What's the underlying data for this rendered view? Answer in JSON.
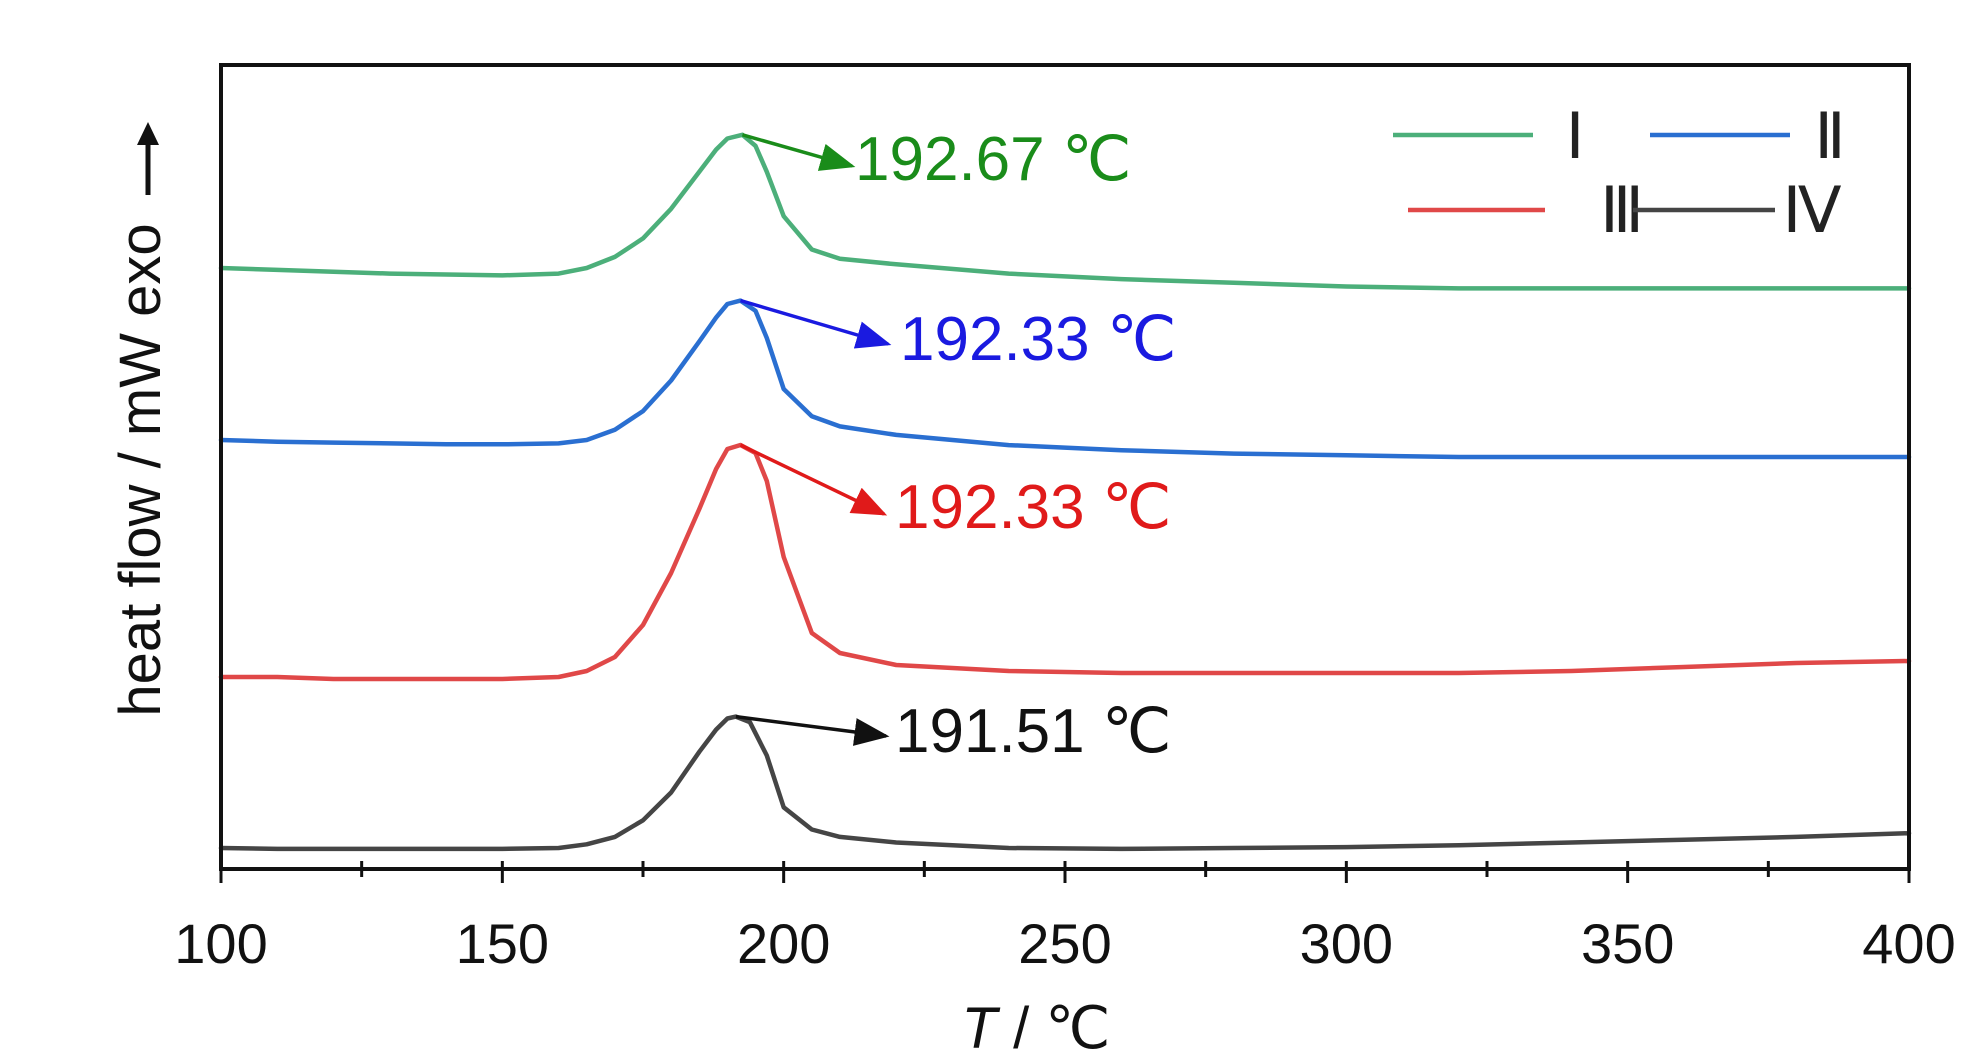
{
  "chart_data": {
    "type": "line",
    "xlabel_italic": "T",
    "xlabel_rest": " / ℃",
    "ylabel": "heat flow / mW  exo",
    "xlim": [
      100,
      400
    ],
    "xticks": [
      "100",
      "150",
      "200",
      "250",
      "300",
      "350",
      "400"
    ],
    "yticks_labeled": false,
    "grid": false,
    "legend_position": "top-right",
    "series": [
      {
        "name": "Ⅰ",
        "color": "#4caf7a",
        "x": [
          100,
          110,
          120,
          130,
          140,
          150,
          160,
          165,
          170,
          175,
          180,
          185,
          188,
          190,
          192.67,
          195,
          197,
          200,
          205,
          210,
          220,
          240,
          260,
          280,
          300,
          320,
          340,
          360,
          380,
          400
        ],
        "y": [
          0.0,
          -0.01,
          -0.02,
          -0.03,
          -0.035,
          -0.04,
          -0.03,
          0.0,
          0.06,
          0.16,
          0.32,
          0.52,
          0.64,
          0.7,
          0.72,
          0.66,
          0.52,
          0.28,
          0.1,
          0.05,
          0.02,
          -0.03,
          -0.06,
          -0.08,
          -0.1,
          -0.11,
          -0.11,
          -0.11,
          -0.11,
          -0.11
        ]
      },
      {
        "name": "Ⅱ",
        "color": "#2a6fd1",
        "x": [
          100,
          110,
          120,
          130,
          140,
          150,
          160,
          165,
          170,
          175,
          180,
          185,
          188,
          190,
          192.33,
          195,
          197,
          200,
          205,
          210,
          220,
          240,
          260,
          280,
          300,
          320,
          340,
          360,
          380,
          400
        ],
        "y": [
          0.0,
          -0.01,
          -0.015,
          -0.02,
          -0.025,
          -0.025,
          -0.02,
          0.0,
          0.06,
          0.17,
          0.35,
          0.58,
          0.72,
          0.8,
          0.82,
          0.76,
          0.6,
          0.3,
          0.14,
          0.08,
          0.03,
          -0.03,
          -0.06,
          -0.08,
          -0.09,
          -0.1,
          -0.1,
          -0.1,
          -0.1,
          -0.1
        ]
      },
      {
        "name": "Ⅲ",
        "color": "#e04848",
        "x": [
          100,
          110,
          120,
          130,
          140,
          150,
          160,
          165,
          170,
          175,
          180,
          185,
          188,
          190,
          192.33,
          195,
          197,
          200,
          205,
          210,
          220,
          240,
          260,
          280,
          300,
          320,
          340,
          360,
          380,
          400
        ],
        "y": [
          0.0,
          0.0,
          -0.01,
          -0.01,
          -0.01,
          -0.01,
          0.0,
          0.03,
          0.1,
          0.26,
          0.52,
          0.84,
          1.04,
          1.14,
          1.16,
          1.12,
          0.98,
          0.6,
          0.22,
          0.12,
          0.06,
          0.03,
          0.02,
          0.02,
          0.02,
          0.02,
          0.03,
          0.05,
          0.07,
          0.08
        ]
      },
      {
        "name": "Ⅳ",
        "color": "#454545",
        "x": [
          100,
          110,
          120,
          130,
          140,
          150,
          160,
          165,
          170,
          175,
          180,
          185,
          188,
          190,
          191.51,
          194,
          197,
          200,
          205,
          210,
          220,
          240,
          260,
          280,
          300,
          320,
          340,
          360,
          380,
          400
        ],
        "y": [
          0.0,
          -0.005,
          -0.005,
          -0.005,
          -0.005,
          -0.005,
          0.0,
          0.02,
          0.06,
          0.15,
          0.3,
          0.52,
          0.64,
          0.7,
          0.71,
          0.68,
          0.5,
          0.22,
          0.1,
          0.06,
          0.03,
          0.0,
          -0.005,
          0.0,
          0.005,
          0.015,
          0.03,
          0.045,
          0.06,
          0.08
        ]
      }
    ],
    "annotations": [
      {
        "series": "Ⅰ",
        "text": "192.67 ℃",
        "peak_x": 192.67,
        "color": "#1a8c1a"
      },
      {
        "series": "Ⅱ",
        "text": "192.33 ℃",
        "peak_x": 192.33,
        "color": "#1a1ae0"
      },
      {
        "series": "Ⅲ",
        "text": "192.33 ℃",
        "peak_x": 192.33,
        "color": "#e01a1a"
      },
      {
        "series": "Ⅳ",
        "text": "191.51 ℃",
        "peak_x": 191.51,
        "color": "#111111"
      }
    ]
  }
}
